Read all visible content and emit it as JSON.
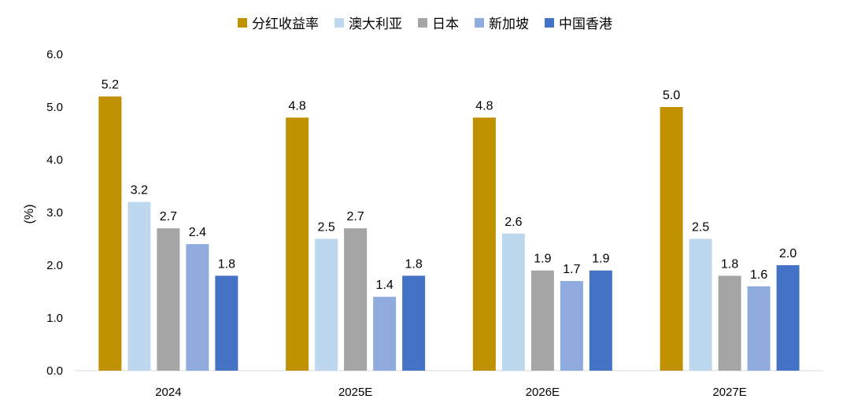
{
  "chart_data": {
    "type": "bar",
    "title": "",
    "xlabel": "",
    "ylabel": "(%)",
    "ylim": [
      0,
      6
    ],
    "yticks": [
      "0.0",
      "1.0",
      "2.0",
      "3.0",
      "4.0",
      "5.0",
      "6.0"
    ],
    "categories": [
      "2024",
      "2025E",
      "2026E",
      "2027E"
    ],
    "legend_position": "top-center",
    "series": [
      {
        "name": "分红收益率",
        "color": "#BF9000",
        "values": [
          5.2,
          4.8,
          4.8,
          5.0
        ]
      },
      {
        "name": "澳大利亚",
        "color": "#BDD7EE",
        "values": [
          3.2,
          2.5,
          2.6,
          2.5
        ]
      },
      {
        "name": "日本",
        "color": "#A5A5A5",
        "values": [
          2.7,
          2.7,
          1.9,
          1.8
        ]
      },
      {
        "name": "新加坡",
        "color": "#8FAADC",
        "values": [
          2.4,
          1.4,
          1.7,
          1.6
        ]
      },
      {
        "name": "中国香港",
        "color": "#4472C4",
        "values": [
          1.8,
          1.8,
          1.9,
          2.0
        ]
      }
    ]
  }
}
